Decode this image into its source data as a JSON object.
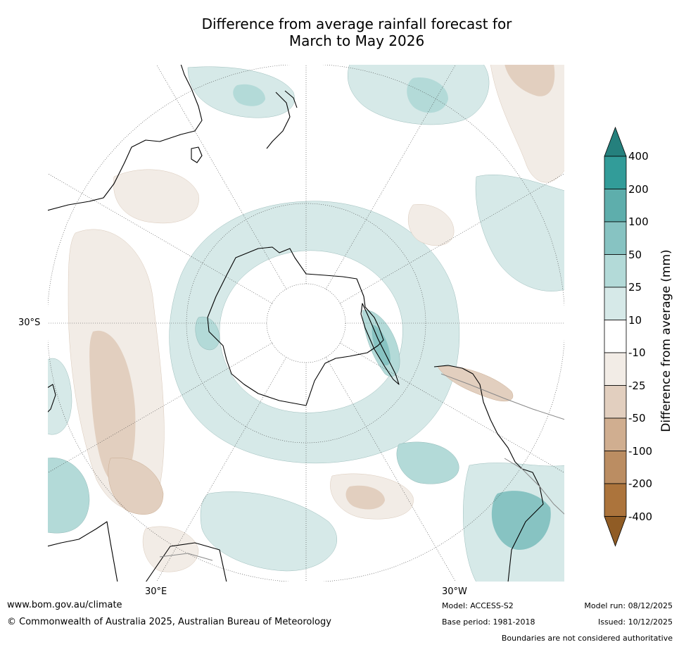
{
  "title": {
    "line1": "Difference from average rainfall forecast for",
    "line2": "March to May 2026"
  },
  "map": {
    "projection": "south polar stereographic",
    "lat_label": "30°S",
    "lon_labels": [
      "30°E",
      "30°W"
    ],
    "anomaly_areas": [
      {
        "region": "Southern Ocean ring around Antarctica",
        "category": "10 to 25"
      },
      {
        "region": "Weddell Sea / Antarctic Peninsula",
        "category": "25 to 50"
      },
      {
        "region": "Eastern Indian Ocean west of Australia",
        "category": "-10 to -25"
      },
      {
        "region": "South-east Pacific off South America",
        "category": "25 to 50"
      },
      {
        "region": "Southern Andes",
        "category": "-25 to -50"
      },
      {
        "region": "South Atlantic off southern Africa",
        "category": "-25 to -50"
      }
    ],
    "continent_names": [
      "Antarctica",
      "Australia",
      "New Zealand",
      "South America",
      "Africa"
    ]
  },
  "colorbar": {
    "label": "Difference from average (mm)",
    "ticks": [
      "400",
      "200",
      "100",
      "50",
      "25",
      "10",
      "-10",
      "-25",
      "-50",
      "-100",
      "-200",
      "-400"
    ],
    "colors": [
      "#25807d",
      "#329c99",
      "#5eaeac",
      "#87c3c2",
      "#b3dad8",
      "#d6e9e8",
      "#ffffff",
      "#f2ece6",
      "#e2cfbf",
      "#d0ae90",
      "#bb8d62",
      "#ac743c",
      "#905c25"
    ]
  },
  "footer": {
    "url": "www.bom.gov.au/climate",
    "copyright": "© Commonwealth of Australia 2025, Australian Bureau of Meteorology",
    "model": "Model: ACCESS-S2",
    "base_period": "Base period: 1981-2018",
    "model_run": "Model run: 08/12/2025",
    "issued": "Issued: 10/12/2025",
    "disclaimer": "Boundaries are not considered authoritative"
  }
}
